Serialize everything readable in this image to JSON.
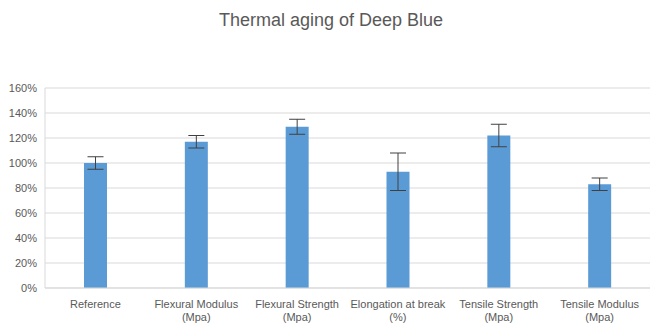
{
  "chart_data": {
    "type": "bar",
    "title": "Thermal aging of Deep Blue",
    "categories": [
      "Reference",
      "Flexural Modulus (Mpa)",
      "Flexural Strength (Mpa)",
      "Elongation at break (%)",
      "Tensile Strength (Mpa)",
      "Tensile Modulus (Mpa)"
    ],
    "values": [
      100,
      117,
      129,
      93,
      122,
      83
    ],
    "errors": [
      5,
      5,
      6,
      15,
      9,
      5
    ],
    "color": "#5b9bd5",
    "ylim": [
      0,
      160
    ],
    "yticks": [
      {
        "value": 0,
        "label": "0%"
      },
      {
        "value": 20,
        "label": "20%"
      },
      {
        "value": 40,
        "label": "40%"
      },
      {
        "value": 60,
        "label": "60%"
      },
      {
        "value": 80,
        "label": "80%"
      },
      {
        "value": 100,
        "label": "100%"
      },
      {
        "value": 120,
        "label": "120%"
      },
      {
        "value": 140,
        "label": "140%"
      },
      {
        "value": 160,
        "label": "160%"
      }
    ],
    "grid": true
  }
}
